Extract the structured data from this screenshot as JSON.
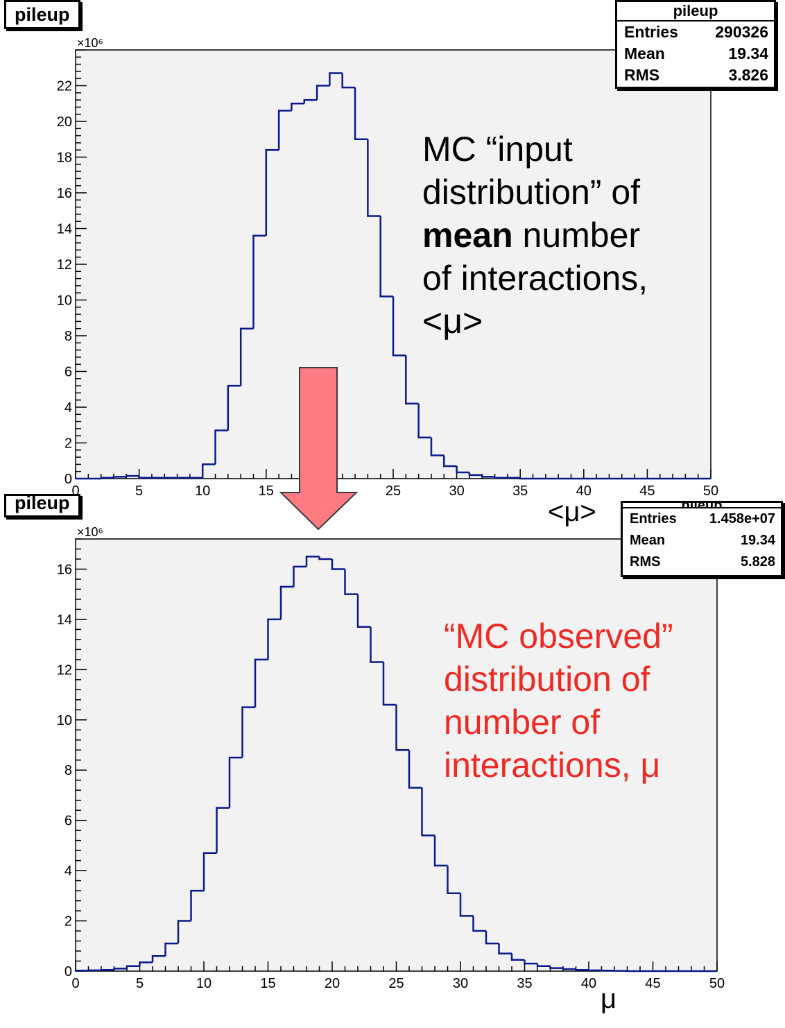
{
  "chart_data": [
    {
      "type": "bar",
      "title": "pileup",
      "xlabel": "<μ>",
      "ylabel": "",
      "y_multiplier": "×10⁶",
      "xlim": [
        0,
        50
      ],
      "ylim": [
        0,
        24
      ],
      "x_ticks": [
        0,
        5,
        10,
        15,
        20,
        25,
        30,
        35,
        40,
        45,
        50
      ],
      "y_ticks": [
        0,
        2,
        4,
        6,
        8,
        10,
        12,
        14,
        16,
        18,
        20,
        22
      ],
      "bin_edges_start": 0,
      "bin_width": 1,
      "values": [
        0,
        0,
        0.05,
        0.1,
        0.15,
        0.05,
        0.05,
        0.05,
        0.05,
        0.05,
        0.8,
        2.7,
        5.2,
        8.4,
        13.6,
        18.4,
        20.6,
        21.0,
        21.2,
        22.0,
        22.7,
        21.9,
        19.0,
        14.7,
        10.2,
        6.9,
        4.2,
        2.3,
        1.3,
        0.7,
        0.35,
        0.2,
        0.1,
        0.05,
        0.05,
        0,
        0,
        0,
        0,
        0,
        0,
        0,
        0,
        0,
        0,
        0,
        0,
        0,
        0,
        0
      ],
      "stats": {
        "title": "pileup",
        "rows": [
          {
            "label": "Entries",
            "value": "290326"
          },
          {
            "label": "Mean",
            "value": "19.34"
          },
          {
            "label": "RMS",
            "value": "3.826"
          }
        ]
      }
    },
    {
      "type": "bar",
      "title": "pileup",
      "xlabel": "μ",
      "ylabel": "",
      "y_multiplier": "×10⁶",
      "xlim": [
        0,
        50
      ],
      "ylim": [
        0,
        17.2
      ],
      "x_ticks": [
        0,
        5,
        10,
        15,
        20,
        25,
        30,
        35,
        40,
        45,
        50
      ],
      "y_ticks": [
        0,
        2,
        4,
        6,
        8,
        10,
        12,
        14,
        16
      ],
      "bin_edges_start": 0,
      "bin_width": 1,
      "values": [
        0.02,
        0.03,
        0.05,
        0.1,
        0.2,
        0.35,
        0.6,
        1.1,
        2.0,
        3.2,
        4.7,
        6.5,
        8.5,
        10.5,
        12.4,
        14.0,
        15.3,
        16.1,
        16.5,
        16.4,
        16.0,
        15.0,
        13.7,
        12.3,
        10.6,
        8.8,
        7.3,
        5.4,
        4.2,
        3.1,
        2.2,
        1.6,
        1.1,
        0.7,
        0.45,
        0.3,
        0.2,
        0.12,
        0.08,
        0.05,
        0.03,
        0.02,
        0.01,
        0,
        0,
        0,
        0,
        0,
        0,
        0
      ],
      "stats": {
        "title": "pileup",
        "rows": [
          {
            "label": "Entries",
            "value": "1.458e+07"
          },
          {
            "label": "Mean",
            "value": "19.34"
          },
          {
            "label": "RMS",
            "value": "5.828"
          }
        ]
      }
    }
  ],
  "annotations": {
    "top": {
      "line1": "MC “input",
      "line2": "distribution” of",
      "line3_bold": "mean",
      "line3_rest": " number",
      "line4": "of interactions,",
      "line5": "<μ>"
    },
    "bottom": {
      "line1": "“MC observed”",
      "line2": "distribution of",
      "line3": "number of",
      "line4": "interactions, μ"
    }
  },
  "colors": {
    "histogram_line": "#0a1a8c",
    "frame_fill": "#f2f2f2",
    "arrow_fill": "#ff7b82",
    "arrow_stroke": "#3a3a3a",
    "annotation_red": "#ee2a24"
  }
}
